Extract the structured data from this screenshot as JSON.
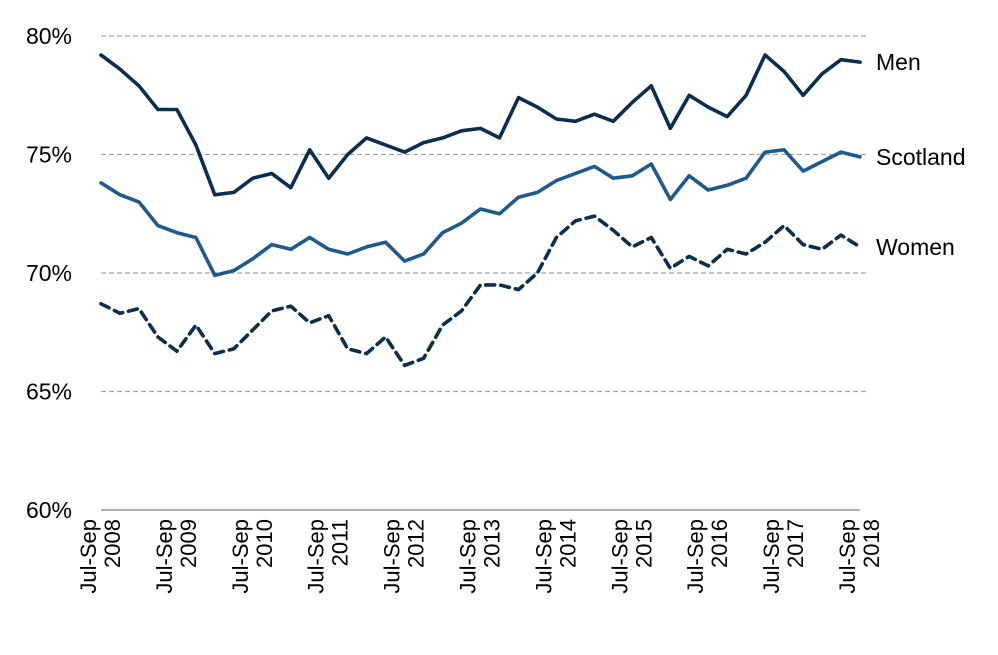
{
  "chart_data": {
    "type": "line",
    "title": "",
    "xlabel": "",
    "ylabel": "",
    "y_unit": "%",
    "ylim": [
      60,
      80
    ],
    "y_ticks": [
      "80%",
      "75%",
      "70%",
      "65%",
      "60%"
    ],
    "y_tick_values": [
      80,
      75,
      70,
      65,
      60
    ],
    "grid": true,
    "x_tick_labels": [
      {
        "line1": "Jul-Sep",
        "line2": "2008",
        "index": 0
      },
      {
        "line1": "Jul-Sep",
        "line2": "2009",
        "index": 4
      },
      {
        "line1": "Jul-Sep",
        "line2": "2010",
        "index": 8
      },
      {
        "line1": "Jul-Sep",
        "line2": "2011",
        "index": 12
      },
      {
        "line1": "Jul-Sep",
        "line2": "2012",
        "index": 16
      },
      {
        "line1": "Jul-Sep",
        "line2": "2013",
        "index": 20
      },
      {
        "line1": "Jul-Sep",
        "line2": "2014",
        "index": 24
      },
      {
        "line1": "Jul-Sep",
        "line2": "2015",
        "index": 28
      },
      {
        "line1": "Jul-Sep",
        "line2": "2016",
        "index": 32
      },
      {
        "line1": "Jul-Sep",
        "line2": "2017",
        "index": 36
      },
      {
        "line1": "Jul-Sep",
        "line2": "2018",
        "index": 40
      }
    ],
    "series": [
      {
        "name": "Men",
        "color": "#0b2d4e",
        "dashed": false,
        "values": [
          79.2,
          78.6,
          77.9,
          76.9,
          76.9,
          75.4,
          73.3,
          73.4,
          74.0,
          74.2,
          73.6,
          75.2,
          74.0,
          75.0,
          75.7,
          75.4,
          75.1,
          75.5,
          75.7,
          76.0,
          76.1,
          75.7,
          77.4,
          77.0,
          76.5,
          76.4,
          76.7,
          76.4,
          77.2,
          77.9,
          76.1,
          77.5,
          77.0,
          76.6,
          77.5,
          79.2,
          78.5,
          77.5,
          78.4,
          79.0,
          78.9
        ]
      },
      {
        "name": "Scotland",
        "color": "#1f5a8a",
        "dashed": false,
        "values": [
          73.8,
          73.3,
          73.0,
          72.0,
          71.7,
          71.5,
          69.9,
          70.1,
          70.6,
          71.2,
          71.0,
          71.5,
          71.0,
          70.8,
          71.1,
          71.3,
          70.5,
          70.8,
          71.7,
          72.1,
          72.7,
          72.5,
          73.2,
          73.4,
          73.9,
          74.2,
          74.5,
          74.0,
          74.1,
          74.6,
          73.1,
          74.1,
          73.5,
          73.7,
          74.0,
          75.1,
          75.2,
          74.3,
          74.7,
          75.1,
          74.9
        ]
      },
      {
        "name": "Women",
        "color": "#0b2d4e",
        "dashed": true,
        "values": [
          68.7,
          68.3,
          68.5,
          67.3,
          66.7,
          67.8,
          66.6,
          66.8,
          67.6,
          68.4,
          68.6,
          67.9,
          68.2,
          66.8,
          66.6,
          67.3,
          66.1,
          66.4,
          67.8,
          68.4,
          69.5,
          69.5,
          69.3,
          70.0,
          71.5,
          72.2,
          72.4,
          71.8,
          71.1,
          71.5,
          70.2,
          70.7,
          70.3,
          71.0,
          70.8,
          71.3,
          72.0,
          71.2,
          71.0,
          71.6,
          71.1
        ]
      }
    ]
  }
}
